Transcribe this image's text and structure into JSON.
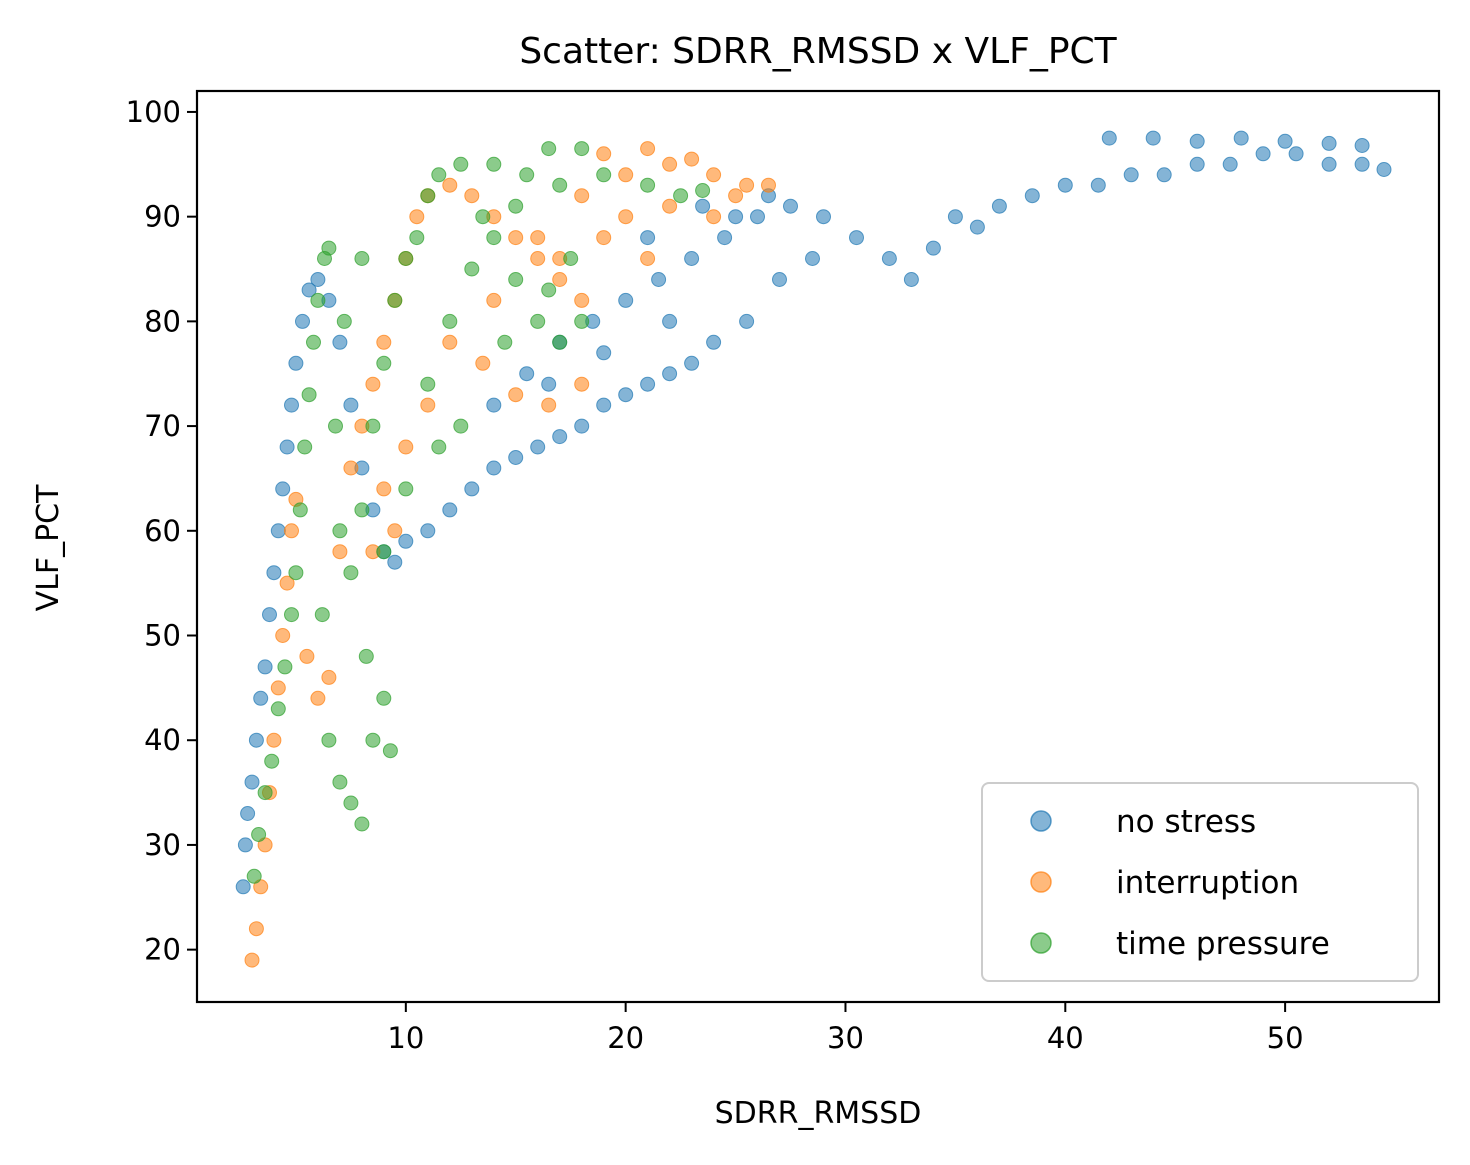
{
  "chart_data": {
    "type": "scatter",
    "title": "Scatter: SDRR_RMSSD x VLF_PCT",
    "xlabel": "SDRR_RMSSD",
    "ylabel": "VLF_PCT",
    "xlim": [
      0.5,
      57
    ],
    "ylim": [
      15,
      102
    ],
    "xticks": [
      10,
      20,
      30,
      40,
      50
    ],
    "yticks": [
      20,
      30,
      40,
      50,
      60,
      70,
      80,
      90,
      100
    ],
    "grid": false,
    "legend_position": "bottom-right",
    "series": [
      {
        "name": "no stress",
        "color": "#1f77b4",
        "points": [
          [
            2.6,
            26
          ],
          [
            2.7,
            30
          ],
          [
            2.8,
            33
          ],
          [
            3.0,
            36
          ],
          [
            3.2,
            40
          ],
          [
            3.4,
            44
          ],
          [
            3.6,
            47
          ],
          [
            3.8,
            52
          ],
          [
            4.0,
            56
          ],
          [
            4.2,
            60
          ],
          [
            4.4,
            64
          ],
          [
            4.6,
            68
          ],
          [
            4.8,
            72
          ],
          [
            5.0,
            76
          ],
          [
            5.3,
            80
          ],
          [
            5.6,
            83
          ],
          [
            6.0,
            84
          ],
          [
            6.5,
            82
          ],
          [
            7.0,
            78
          ],
          [
            7.5,
            72
          ],
          [
            8.0,
            66
          ],
          [
            8.5,
            62
          ],
          [
            9.0,
            58
          ],
          [
            9.5,
            57
          ],
          [
            10.0,
            59
          ],
          [
            11.0,
            60
          ],
          [
            12.0,
            62
          ],
          [
            13.0,
            64
          ],
          [
            14.0,
            66
          ],
          [
            15.0,
            67
          ],
          [
            16.0,
            68
          ],
          [
            17.0,
            69
          ],
          [
            18.0,
            70
          ],
          [
            19.0,
            72
          ],
          [
            20.0,
            73
          ],
          [
            21.0,
            74
          ],
          [
            22.0,
            75
          ],
          [
            23.0,
            76
          ],
          [
            14.0,
            72
          ],
          [
            15.5,
            75
          ],
          [
            17.0,
            78
          ],
          [
            18.5,
            80
          ],
          [
            20.0,
            82
          ],
          [
            21.5,
            84
          ],
          [
            23.0,
            86
          ],
          [
            24.5,
            88
          ],
          [
            26.0,
            90
          ],
          [
            27.5,
            91
          ],
          [
            29.0,
            90
          ],
          [
            30.5,
            88
          ],
          [
            32.0,
            86
          ],
          [
            33.0,
            84
          ],
          [
            34.0,
            87
          ],
          [
            35.0,
            90
          ],
          [
            36.0,
            89
          ],
          [
            37.0,
            91
          ],
          [
            38.5,
            92
          ],
          [
            40.0,
            93
          ],
          [
            41.5,
            93
          ],
          [
            43.0,
            94
          ],
          [
            44.5,
            94
          ],
          [
            46.0,
            95
          ],
          [
            47.5,
            95
          ],
          [
            49.0,
            96
          ],
          [
            50.5,
            96
          ],
          [
            52.0,
            95
          ],
          [
            53.5,
            95
          ],
          [
            54.5,
            94.5
          ],
          [
            42.0,
            97.5
          ],
          [
            44.0,
            97.5
          ],
          [
            46.0,
            97.2
          ],
          [
            48.0,
            97.5
          ],
          [
            50.0,
            97.2
          ],
          [
            52.0,
            97
          ],
          [
            53.5,
            96.8
          ],
          [
            24.0,
            78
          ],
          [
            25.5,
            80
          ],
          [
            27.0,
            84
          ],
          [
            28.5,
            86
          ],
          [
            22.0,
            80
          ],
          [
            19.0,
            77
          ],
          [
            16.5,
            74
          ],
          [
            25.0,
            90
          ],
          [
            26.5,
            92
          ],
          [
            21.0,
            88
          ],
          [
            23.5,
            91
          ]
        ]
      },
      {
        "name": "interruption",
        "color": "#ff7f0e",
        "points": [
          [
            3.0,
            19
          ],
          [
            3.2,
            22
          ],
          [
            3.4,
            26
          ],
          [
            3.6,
            30
          ],
          [
            3.8,
            35
          ],
          [
            4.0,
            40
          ],
          [
            4.2,
            45
          ],
          [
            4.4,
            50
          ],
          [
            4.6,
            55
          ],
          [
            4.8,
            60
          ],
          [
            5.0,
            63
          ],
          [
            5.5,
            48
          ],
          [
            6.0,
            44
          ],
          [
            6.5,
            46
          ],
          [
            7.0,
            58
          ],
          [
            7.5,
            66
          ],
          [
            8.0,
            70
          ],
          [
            8.5,
            74
          ],
          [
            9.0,
            78
          ],
          [
            9.5,
            82
          ],
          [
            10.0,
            86
          ],
          [
            10.5,
            90
          ],
          [
            11.0,
            92
          ],
          [
            12.0,
            93
          ],
          [
            13.0,
            92
          ],
          [
            14.0,
            90
          ],
          [
            15.0,
            88
          ],
          [
            16.0,
            86
          ],
          [
            17.0,
            84
          ],
          [
            18.0,
            82
          ],
          [
            12.0,
            78
          ],
          [
            13.5,
            76
          ],
          [
            15.0,
            73
          ],
          [
            16.5,
            72
          ],
          [
            18.0,
            74
          ],
          [
            14.0,
            82
          ],
          [
            16.0,
            88
          ],
          [
            18.0,
            92
          ],
          [
            20.0,
            94
          ],
          [
            22.0,
            95
          ],
          [
            24.0,
            94
          ],
          [
            25.5,
            93
          ],
          [
            26.5,
            93
          ],
          [
            19.0,
            96
          ],
          [
            21.0,
            96.5
          ],
          [
            23.0,
            95.5
          ],
          [
            20.0,
            90
          ],
          [
            22.0,
            91
          ],
          [
            24.0,
            90
          ],
          [
            25.0,
            92
          ],
          [
            9.0,
            64
          ],
          [
            10.0,
            68
          ],
          [
            11.0,
            72
          ],
          [
            9.5,
            60
          ],
          [
            8.5,
            58
          ],
          [
            17.0,
            86
          ],
          [
            19.0,
            88
          ],
          [
            21.0,
            86
          ]
        ]
      },
      {
        "name": "time pressure",
        "color": "#2ca02c",
        "points": [
          [
            3.1,
            27
          ],
          [
            3.3,
            31
          ],
          [
            3.6,
            35
          ],
          [
            3.9,
            38
          ],
          [
            4.2,
            43
          ],
          [
            4.5,
            47
          ],
          [
            4.8,
            52
          ],
          [
            5.0,
            56
          ],
          [
            5.2,
            62
          ],
          [
            5.4,
            68
          ],
          [
            5.6,
            73
          ],
          [
            5.8,
            78
          ],
          [
            6.0,
            82
          ],
          [
            6.3,
            86
          ],
          [
            6.5,
            87
          ],
          [
            6.2,
            52
          ],
          [
            6.5,
            40
          ],
          [
            7.0,
            36
          ],
          [
            7.5,
            34
          ],
          [
            8.0,
            32
          ],
          [
            8.5,
            40
          ],
          [
            9.0,
            44
          ],
          [
            9.3,
            39
          ],
          [
            8.2,
            48
          ],
          [
            7.5,
            56
          ],
          [
            8.0,
            62
          ],
          [
            8.5,
            70
          ],
          [
            9.0,
            76
          ],
          [
            9.5,
            82
          ],
          [
            10.0,
            86
          ],
          [
            10.5,
            88
          ],
          [
            11.0,
            92
          ],
          [
            11.5,
            94
          ],
          [
            12.5,
            95
          ],
          [
            14.0,
            95
          ],
          [
            15.5,
            94
          ],
          [
            16.5,
            96.5
          ],
          [
            18.0,
            96.5
          ],
          [
            17.0,
            93
          ],
          [
            19.0,
            94
          ],
          [
            21.0,
            93
          ],
          [
            22.5,
            92
          ],
          [
            23.5,
            92.5
          ],
          [
            11.0,
            74
          ],
          [
            12.0,
            80
          ],
          [
            13.0,
            85
          ],
          [
            14.0,
            88
          ],
          [
            15.0,
            84
          ],
          [
            16.0,
            80
          ],
          [
            17.0,
            78
          ],
          [
            18.0,
            80
          ],
          [
            12.5,
            70
          ],
          [
            14.5,
            78
          ],
          [
            16.5,
            83
          ],
          [
            13.5,
            90
          ],
          [
            15.0,
            91
          ],
          [
            17.5,
            86
          ],
          [
            10.0,
            64
          ],
          [
            11.5,
            68
          ],
          [
            9.0,
            58
          ],
          [
            7.0,
            60
          ],
          [
            6.8,
            70
          ],
          [
            7.2,
            80
          ],
          [
            8.0,
            86
          ]
        ]
      }
    ]
  }
}
